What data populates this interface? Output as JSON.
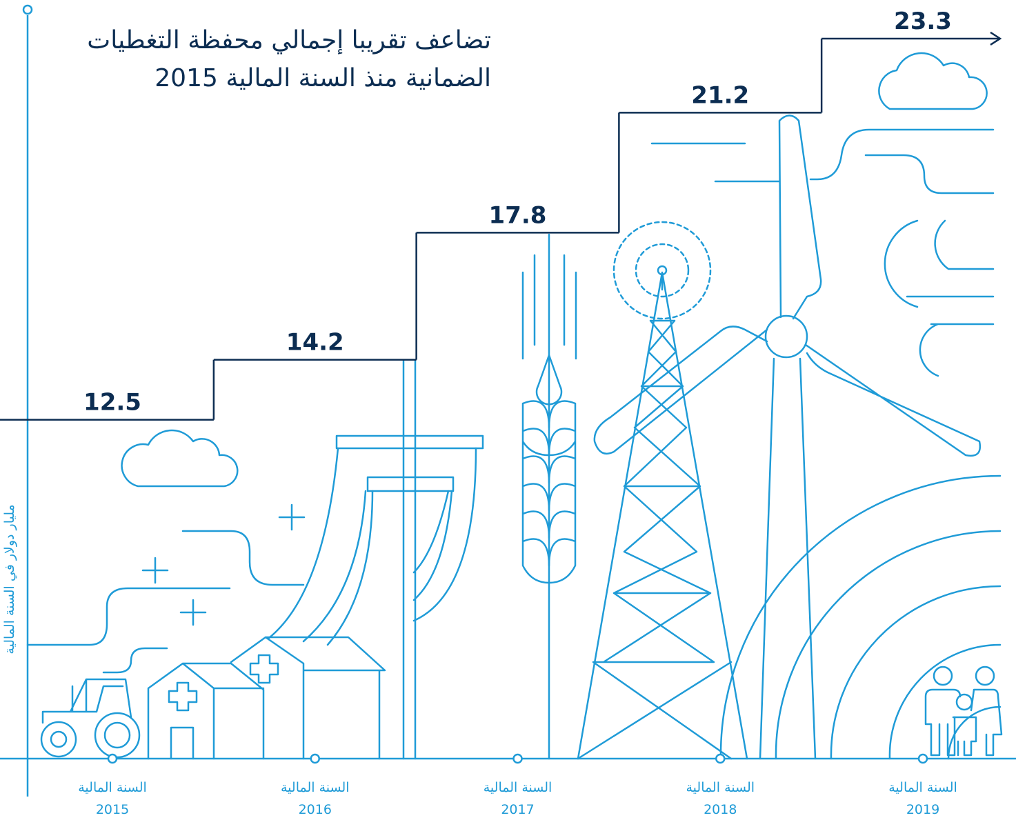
{
  "chart_data": {
    "type": "step",
    "title": [
      "تضاعف تقريبا إجمالي محفظة التغطيات",
      "الضمانية منذ السنة المالية 2015"
    ],
    "y_label": "مليار دولار في السنة المالية",
    "categories": [
      [
        "السنة المالية",
        "2015"
      ],
      [
        "السنة المالية",
        "2016"
      ],
      [
        "السنة المالية",
        "2017"
      ],
      [
        "السنة المالية",
        "2018"
      ],
      [
        "السنة المالية",
        "2019"
      ]
    ],
    "values": [
      12.5,
      14.2,
      17.8,
      21.2,
      23.3
    ],
    "color": "#0c2d52",
    "ylim": [
      2.9,
      24.1
    ]
  }
}
